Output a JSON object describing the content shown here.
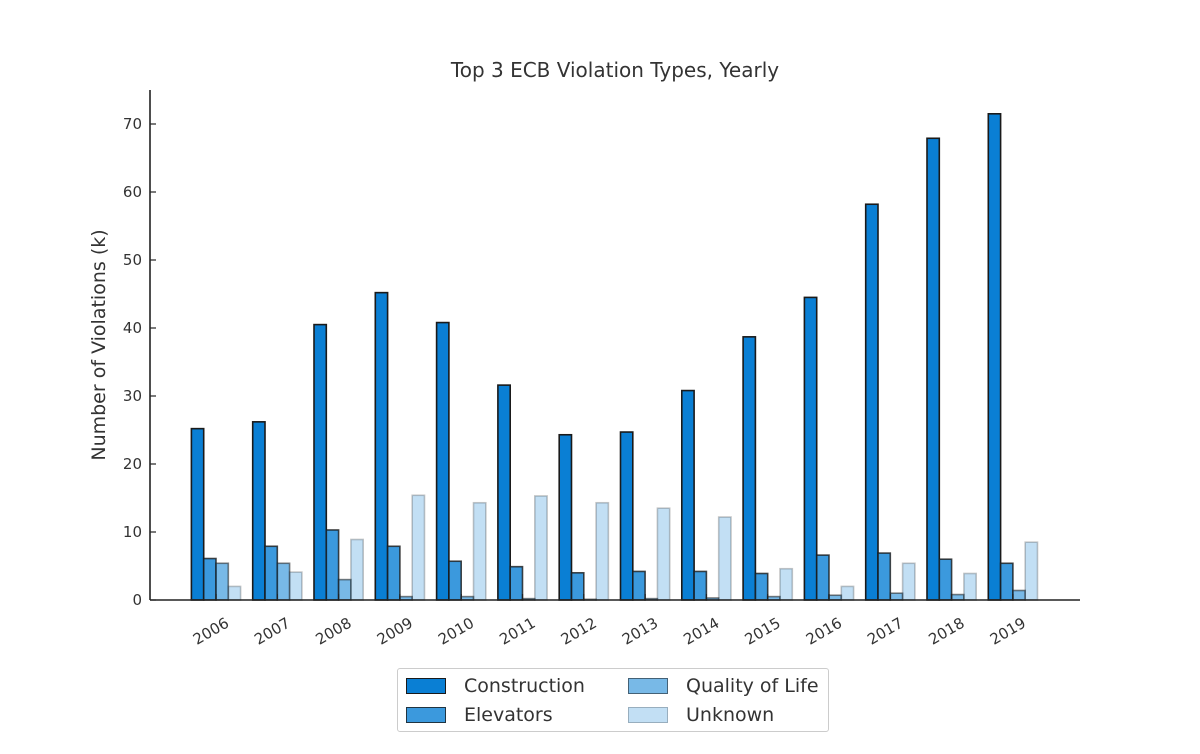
{
  "chart_data": {
    "type": "bar",
    "title": "Top 3 ECB Violation Types, Yearly",
    "xlabel": "",
    "ylabel": "Number of Violations (k)",
    "ylim": [
      0,
      75
    ],
    "yticks": [
      0,
      10,
      20,
      30,
      40,
      50,
      60,
      70
    ],
    "categories": [
      "2006",
      "2007",
      "2008",
      "2009",
      "2010",
      "2011",
      "2012",
      "2013",
      "2014",
      "2015",
      "2016",
      "2017",
      "2018",
      "2019"
    ],
    "series": [
      {
        "name": "Construction",
        "color": "#0a7fd4",
        "opacity": 1.0,
        "values": [
          25.2,
          26.2,
          40.5,
          45.2,
          40.8,
          31.6,
          24.3,
          24.7,
          30.8,
          38.7,
          44.5,
          58.2,
          67.9,
          71.5
        ]
      },
      {
        "name": "Elevators",
        "color": "#0a7fd4",
        "opacity": 0.8,
        "values": [
          6.1,
          7.9,
          10.3,
          7.9,
          5.7,
          4.9,
          4.0,
          4.2,
          4.2,
          3.9,
          6.6,
          6.9,
          6.0,
          5.4
        ]
      },
      {
        "name": "Quality of Life",
        "color": "#0a7fd4",
        "opacity": 0.55,
        "values": [
          5.4,
          5.4,
          3.0,
          0.5,
          0.5,
          0.2,
          0.1,
          0.2,
          0.3,
          0.5,
          0.7,
          1.0,
          0.8,
          1.4
        ]
      },
      {
        "name": "Unknown",
        "color": "#0a7fd4",
        "opacity": 0.25,
        "values": [
          2.0,
          4.1,
          8.9,
          15.4,
          14.3,
          15.3,
          14.3,
          13.5,
          12.2,
          4.6,
          2.0,
          5.4,
          3.9,
          8.5
        ]
      }
    ],
    "legend_position": "bottom-center",
    "grid": false
  }
}
